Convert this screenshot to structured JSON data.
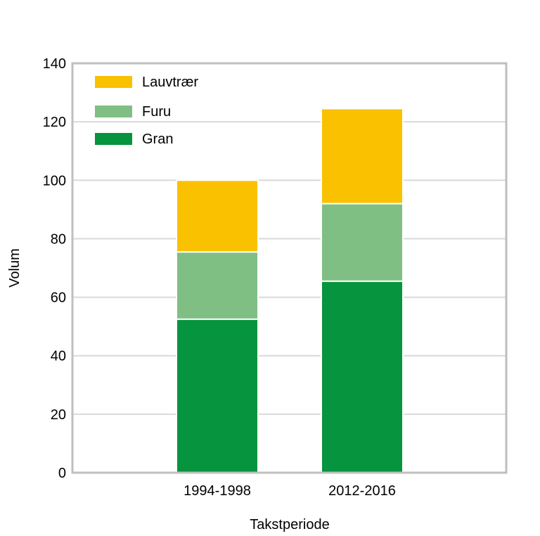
{
  "chart_data": {
    "type": "bar",
    "stacked": true,
    "title": "",
    "xlabel": "Takstperiode",
    "ylabel": "Volum",
    "categories": [
      "1994-1998",
      "2012-2016"
    ],
    "series": [
      {
        "name": "Gran",
        "values": [
          52.5,
          65.5
        ],
        "color": "#06943E"
      },
      {
        "name": "Furu",
        "values": [
          23,
          26.5
        ],
        "color": "#80BF84"
      },
      {
        "name": "Lauvtrær",
        "values": [
          24.5,
          32.5
        ],
        "color": "#FAC100"
      }
    ],
    "ylim": [
      0,
      140
    ],
    "yticks": [
      0,
      20,
      40,
      60,
      80,
      100,
      120,
      140
    ],
    "grid": true,
    "legend_position": "top-left",
    "legend_order": [
      "Lauvtrær",
      "Furu",
      "Gran"
    ],
    "colors": {
      "grid": "#D9D9D9",
      "frame": "#BFBFBF",
      "background": "#FFFFFF"
    }
  }
}
